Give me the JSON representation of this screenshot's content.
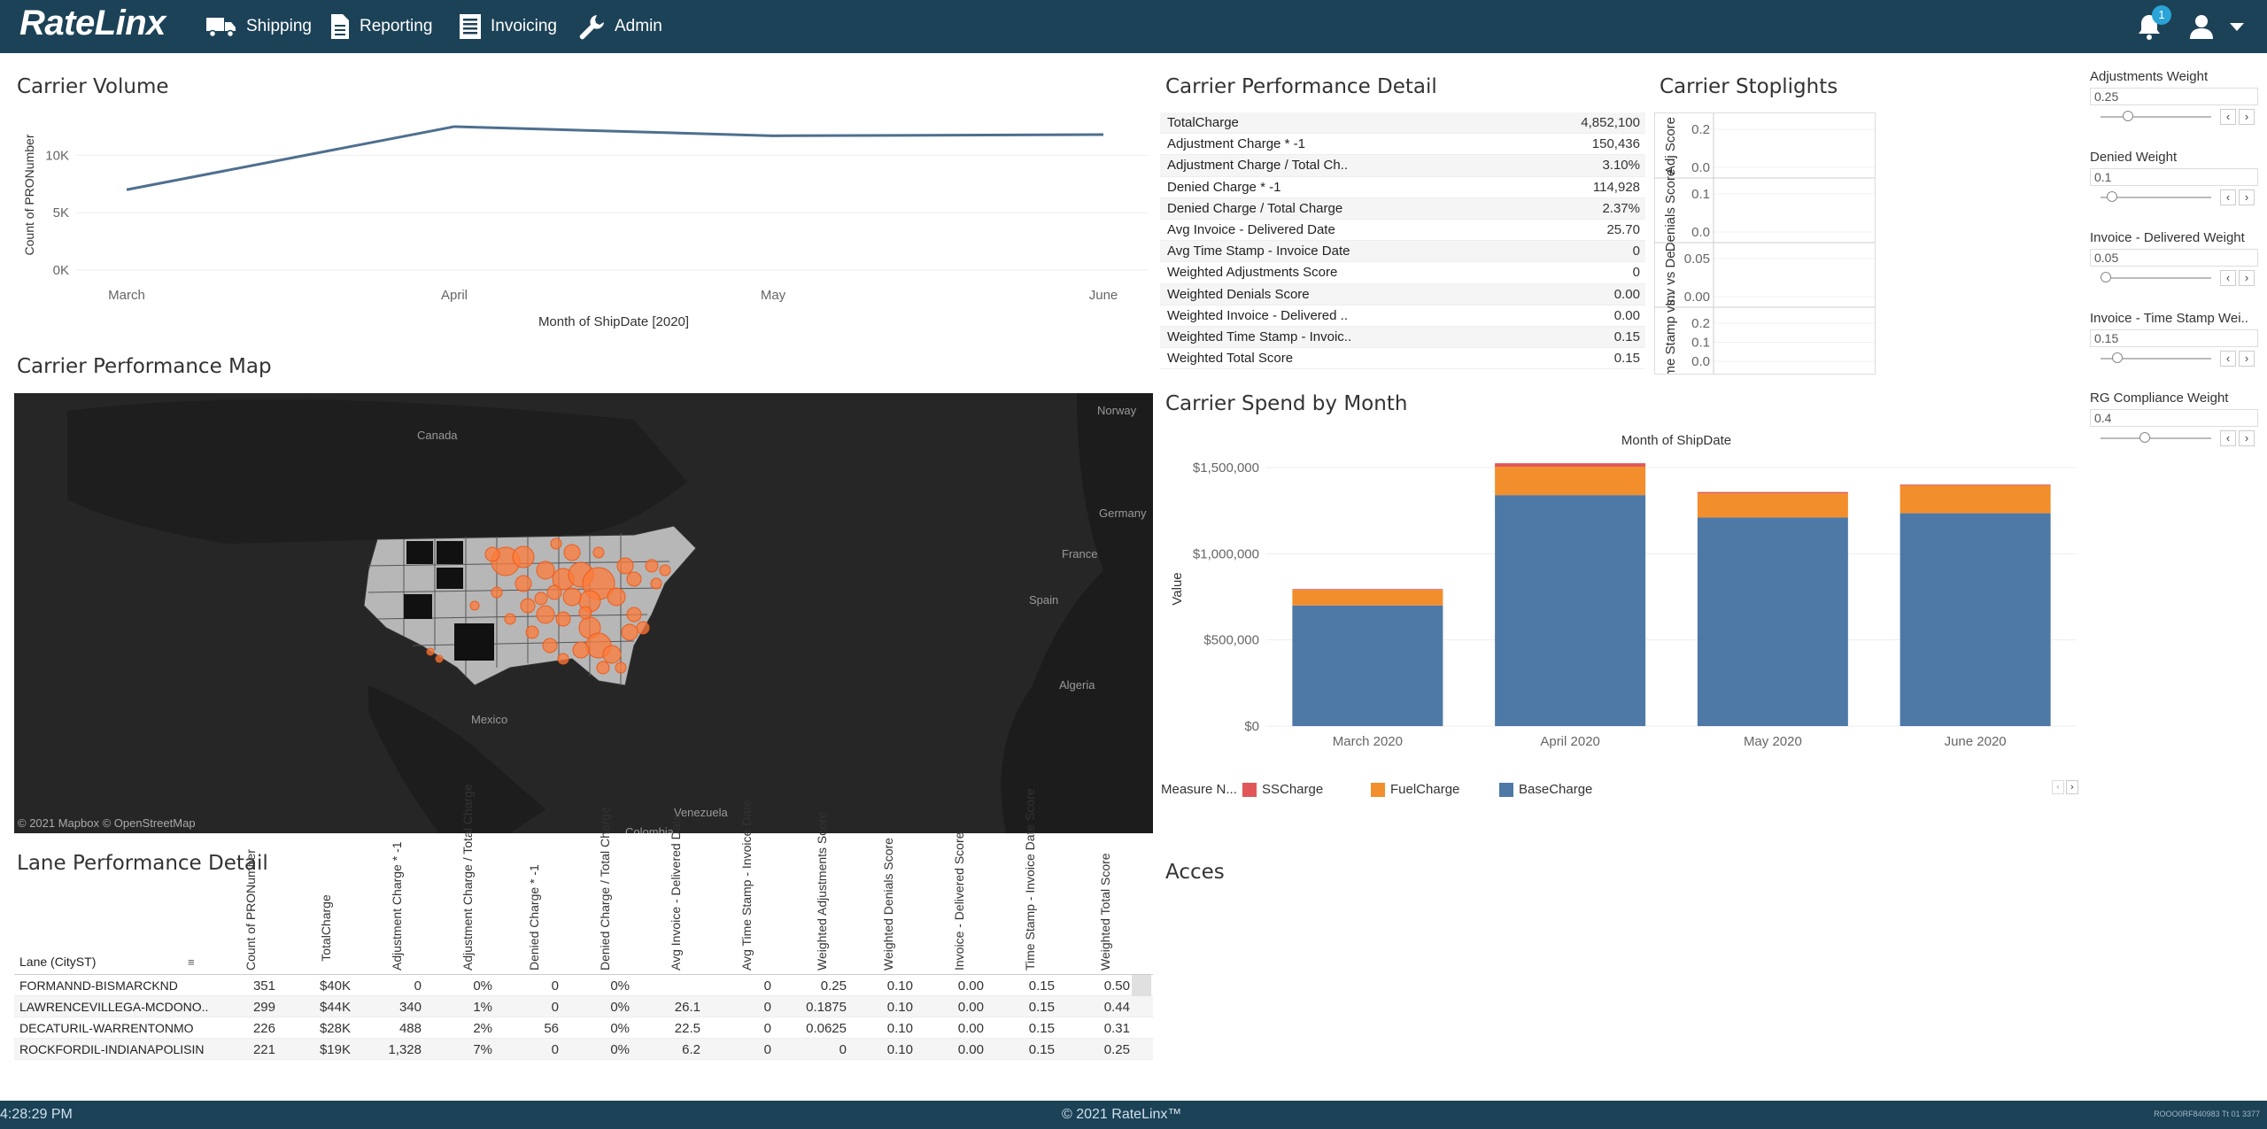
{
  "app": {
    "logo": "RateLinx",
    "nav": [
      {
        "label": "Shipping",
        "icon": "truck-icon"
      },
      {
        "label": "Reporting",
        "icon": "document-icon"
      },
      {
        "label": "Invoicing",
        "icon": "invoice-icon"
      },
      {
        "label": "Admin",
        "icon": "wrench-icon"
      }
    ],
    "notifications_count": "1"
  },
  "footer": {
    "time": "4:28:29 PM",
    "copyright": "© 2021 RateLinx™",
    "build": "ROOO0RF840983 Tt 01 3377"
  },
  "panels": {
    "carrier_volume": "Carrier Volume",
    "carrier_performance_detail": "Carrier Performance Detail",
    "carrier_stoplights": "Carrier Stoplights",
    "carrier_performance_map": "Carrier Performance Map",
    "carrier_spend_by_month": "Carrier Spend by Month",
    "lane_performance_detail": "Lane Performance Detail",
    "access": "Acces"
  },
  "carrier_performance_detail": [
    {
      "label": "TotalCharge",
      "value": "4,852,100"
    },
    {
      "label": "Adjustment Charge * -1",
      "value": "150,436"
    },
    {
      "label": "Adjustment Charge / Total Ch..",
      "value": "3.10%"
    },
    {
      "label": "Denied Charge * -1",
      "value": "114,928"
    },
    {
      "label": "Denied Charge / Total Charge",
      "value": "2.37%"
    },
    {
      "label": "Avg Invoice - Delivered Date",
      "value": "25.70"
    },
    {
      "label": "Avg Time Stamp - Invoice Date",
      "value": "0"
    },
    {
      "label": "Weighted Adjustments Score",
      "value": "0"
    },
    {
      "label": "Weighted Denials Score",
      "value": "0.00"
    },
    {
      "label": "Weighted Invoice - Delivered ..",
      "value": "0.00"
    },
    {
      "label": "Weighted Time Stamp - Invoic..",
      "value": "0.15"
    },
    {
      "label": "Weighted Total Score",
      "value": "0.15"
    }
  ],
  "stoplights": {
    "rows": [
      {
        "label": "Adj Score",
        "ticks": [
          "0.2",
          "0.0"
        ],
        "colors": [
          "#2e8540",
          "#a8c95c"
        ]
      },
      {
        "label": "Denials Score",
        "ticks": [
          "0.1",
          "0.0"
        ],
        "colors": [
          "#2e8540",
          "#c8313e"
        ]
      },
      {
        "label": "Inv vs De..",
        "ticks": [
          "0.05",
          "0.00"
        ],
        "colors": [
          "#2e8540",
          "#c8313e"
        ]
      },
      {
        "label": "Time Stamp vs..",
        "ticks": [
          "0.2",
          "0.1",
          "0.0"
        ],
        "colors": [
          "#2e8540"
        ]
      }
    ]
  },
  "weights": [
    {
      "label": "Adjustments Weight",
      "value": "0.25",
      "fraction": 0.25
    },
    {
      "label": "Denied Weight",
      "value": "0.1",
      "fraction": 0.1
    },
    {
      "label": "Invoice - Delivered Weight",
      "value": "0.05",
      "fraction": 0.05
    },
    {
      "label": "Invoice - Time Stamp Wei..",
      "value": "0.15",
      "fraction": 0.15
    },
    {
      "label": "RG Compliance Weight",
      "value": "0.4",
      "fraction": 0.4
    }
  ],
  "map": {
    "labels": [
      "Canada",
      "Norway",
      "Germany",
      "France",
      "Spain",
      "Algeria",
      "Mexico",
      "Venezuela",
      "Colombia"
    ],
    "attribution": "© 2021 Mapbox © OpenStreetMap"
  },
  "chart_data": [
    {
      "type": "line",
      "x": [
        "March",
        "April",
        "May",
        "June"
      ],
      "series": [
        {
          "values": [
            7000,
            12500,
            11700,
            11800
          ]
        }
      ],
      "xlabel": "Month of ShipDate [2020]",
      "ylabel": "Count of PRONumber",
      "yticks": [
        "0K",
        "5K",
        "10K"
      ],
      "ylim": [
        0,
        13500
      ],
      "color": "#4e6f8f"
    },
    {
      "type": "bar",
      "stacked": true,
      "title": "Month of ShipDate",
      "categories": [
        "March 2020",
        "April 2020",
        "May 2020",
        "June 2020"
      ],
      "series": [
        {
          "name": "BaseCharge",
          "color": "#4e79a7",
          "values": [
            700000,
            1340000,
            1210000,
            1235000
          ]
        },
        {
          "name": "FuelCharge",
          "color": "#f28e2b",
          "values": [
            90000,
            165000,
            140000,
            160000
          ]
        },
        {
          "name": "SSCharge",
          "color": "#e15759",
          "values": [
            5000,
            20000,
            8000,
            6000
          ]
        }
      ],
      "ylabel": "Value",
      "yticks": [
        "$0",
        "$500,000",
        "$1,000,000",
        "$1,500,000"
      ],
      "ylim": [
        0,
        1500000
      ],
      "legend_title": "Measure N...",
      "legend_order": [
        "SSCharge",
        "FuelCharge",
        "BaseCharge"
      ]
    }
  ],
  "lane_table": {
    "headers": [
      "Lane (CityST)",
      "Count of PRONumber",
      "TotalCharge",
      "Adjustment Charge * -1",
      "Adjustment Charge / Total Charge",
      "Denied Charge * -1",
      "Denied Charge / Total Charge",
      "Avg Invoice - Delivered Date",
      "Avg Time Stamp - Invoice Date",
      "Weighted Adjustments Score",
      "Weighted Denials Score",
      "Invoice - Delivered Score",
      "Time Stamp - Invoice Date Score",
      "Weighted Total Score"
    ],
    "rows": [
      [
        "FORMANND-BISMARCKND",
        "351",
        "$40K",
        "0",
        "0%",
        "0",
        "0%",
        "",
        "0",
        "0.25",
        "0.10",
        "0.00",
        "0.15",
        "0.50"
      ],
      [
        "LAWRENCEVILLEGA-MCDONO..",
        "299",
        "$44K",
        "340",
        "1%",
        "0",
        "0%",
        "26.1",
        "0",
        "0.1875",
        "0.10",
        "0.00",
        "0.15",
        "0.44"
      ],
      [
        "DECATURIL-WARRENTONMO",
        "226",
        "$28K",
        "488",
        "2%",
        "56",
        "0%",
        "22.5",
        "0",
        "0.0625",
        "0.10",
        "0.00",
        "0.15",
        "0.31"
      ],
      [
        "ROCKFORDIL-INDIANAPOLISIN",
        "221",
        "$19K",
        "1,328",
        "7%",
        "0",
        "0%",
        "6.2",
        "0",
        "0",
        "0.10",
        "0.00",
        "0.15",
        "0.25"
      ]
    ]
  }
}
